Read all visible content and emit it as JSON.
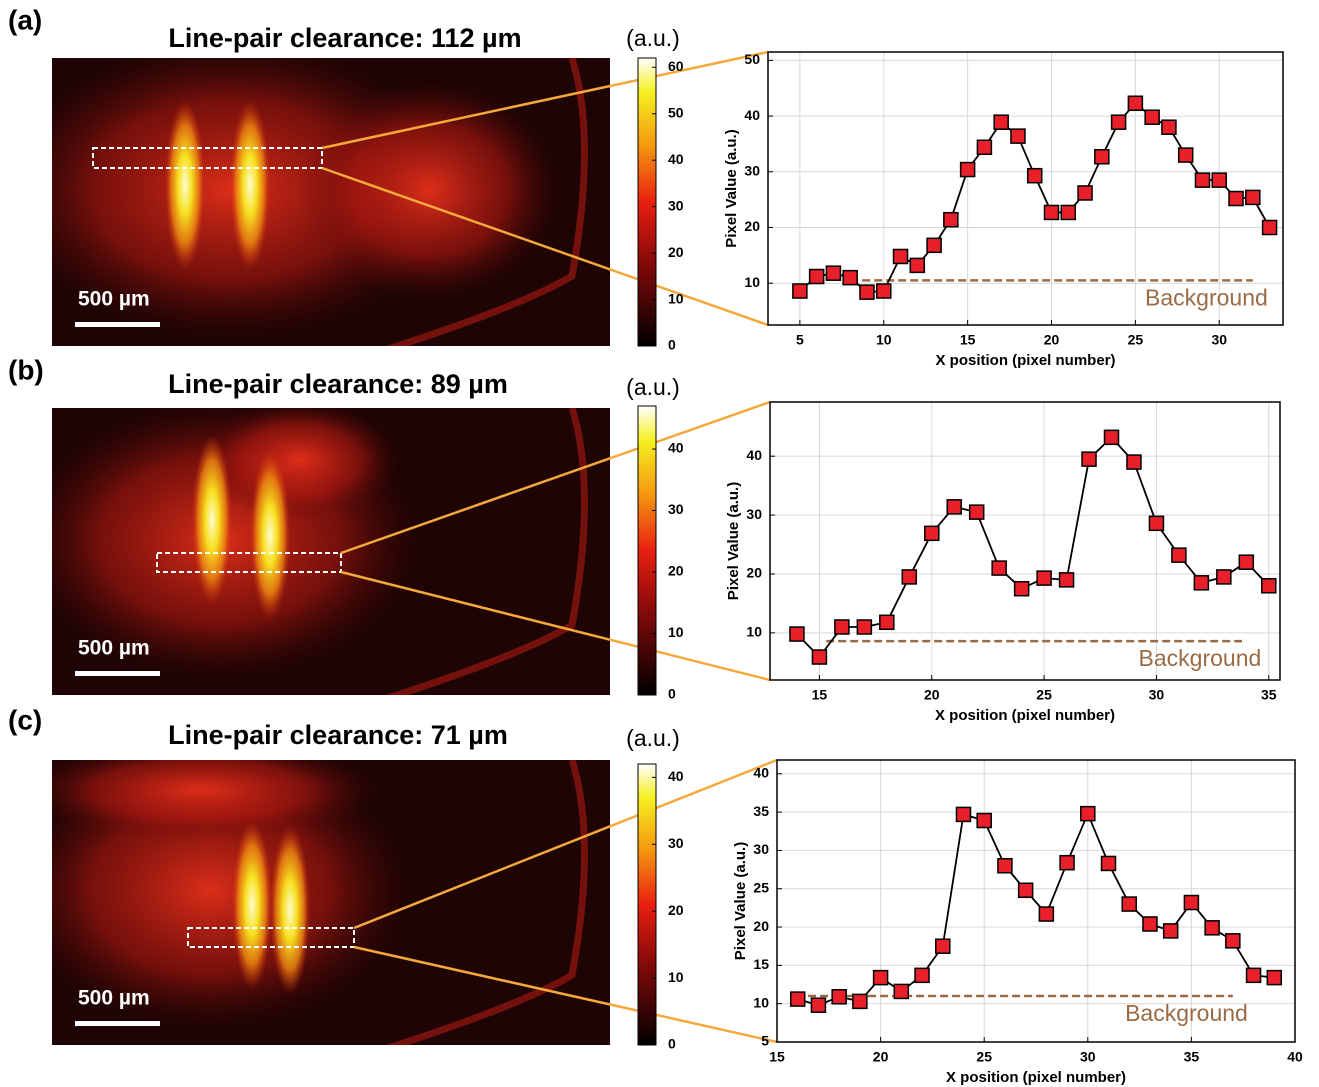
{
  "chart_data": [
    {
      "panel": "(a)",
      "title": "Line-pair clearance: 112 µm",
      "scale_bar": "500 µm",
      "colorbar": {
        "label": "(a.u.)",
        "lim": [
          0,
          62
        ],
        "ticks": [
          0,
          10,
          20,
          30,
          40,
          50,
          60
        ]
      },
      "type": "line",
      "xlabel": "X position (pixel number)",
      "ylabel": "Pixel Value (a.u.)",
      "x": [
        5,
        6,
        7,
        8,
        9,
        10,
        11,
        12,
        13,
        14,
        15,
        16,
        17,
        18,
        19,
        20,
        21,
        22,
        23,
        24,
        25,
        26,
        27,
        28,
        29,
        30,
        31,
        32,
        33
      ],
      "values": [
        8.6,
        11.2,
        11.8,
        11,
        8.4,
        8.6,
        14.8,
        13.2,
        16.8,
        21.4,
        30.4,
        34.4,
        38.9,
        36.4,
        29.3,
        22.7,
        22.7,
        26.2,
        32.7,
        38.9,
        42.3,
        39.8,
        38,
        33,
        28.5,
        28.5,
        25.2,
        25.4,
        20
      ],
      "color": "#e8202a",
      "xlim": [
        3.1,
        33.8
      ],
      "ylim": [
        2.5,
        51.5
      ],
      "xticks": [
        5,
        10,
        15,
        20,
        25,
        30
      ],
      "yticks": [
        10,
        20,
        30,
        40,
        50
      ],
      "grid": true,
      "reference": {
        "label": "Background",
        "value": 10.5,
        "x": [
          8,
          32
        ],
        "color": "#9b6b45"
      }
    },
    {
      "panel": "(b)",
      "title": "Line-pair clearance: 89 µm",
      "scale_bar": "500 µm",
      "colorbar": {
        "label": "(a.u.)",
        "lim": [
          0,
          47
        ],
        "ticks": [
          0,
          10,
          20,
          30,
          40
        ]
      },
      "type": "line",
      "xlabel": "X position (pixel number)",
      "ylabel": "Pixel Value (a.u.)",
      "x": [
        14,
        15,
        16,
        17,
        18,
        19,
        20,
        21,
        22,
        23,
        24,
        25,
        26,
        27,
        28,
        29,
        30,
        31,
        32,
        33,
        34,
        35
      ],
      "values": [
        9.8,
        5.9,
        11,
        11,
        11.8,
        19.5,
        26.9,
        31.4,
        30.5,
        21,
        17.5,
        19.3,
        19,
        39.5,
        43.2,
        39,
        28.6,
        23.2,
        18.5,
        19.5,
        22,
        18
      ],
      "color": "#e8202a",
      "xlim": [
        12.8,
        35.5
      ],
      "ylim": [
        2,
        49.2
      ],
      "xticks": [
        15,
        20,
        25,
        30,
        35
      ],
      "yticks": [
        10,
        20,
        30,
        40
      ],
      "grid": true,
      "reference": {
        "label": "Background",
        "value": 8.6,
        "x": [
          15.3,
          34
        ],
        "color": "#9b6b45"
      }
    },
    {
      "panel": "(c)",
      "title": "Line-pair clearance: 71 µm",
      "scale_bar": "500 µm",
      "colorbar": {
        "label": "(a.u.)",
        "lim": [
          0,
          42
        ],
        "ticks": [
          0,
          10,
          20,
          30,
          40
        ]
      },
      "type": "line",
      "xlabel": "X position (pixel number)",
      "ylabel": "Pixel Value (a.u.)",
      "x": [
        16,
        17,
        18,
        19,
        20,
        21,
        22,
        23,
        24,
        25,
        26,
        27,
        28,
        29,
        30,
        31,
        32,
        33,
        34,
        35,
        36,
        37,
        38,
        39
      ],
      "values": [
        10.6,
        9.8,
        10.9,
        10.3,
        13.4,
        11.6,
        13.7,
        17.5,
        34.7,
        33.9,
        28,
        24.8,
        21.7,
        28.4,
        34.8,
        28.3,
        23,
        20.4,
        19.5,
        23.2,
        19.9,
        18.2,
        13.7,
        13.4
      ],
      "color": "#e8202a",
      "xlim": [
        15,
        40
      ],
      "ylim": [
        5,
        41.8
      ],
      "xticks": [
        15,
        20,
        25,
        30,
        35,
        40
      ],
      "yticks": [
        5,
        10,
        15,
        20,
        25,
        30,
        35,
        40
      ],
      "grid": true,
      "reference": {
        "label": "Background",
        "value": 11,
        "x": [
          16.5,
          37
        ],
        "color": "#9b6b45"
      }
    }
  ]
}
